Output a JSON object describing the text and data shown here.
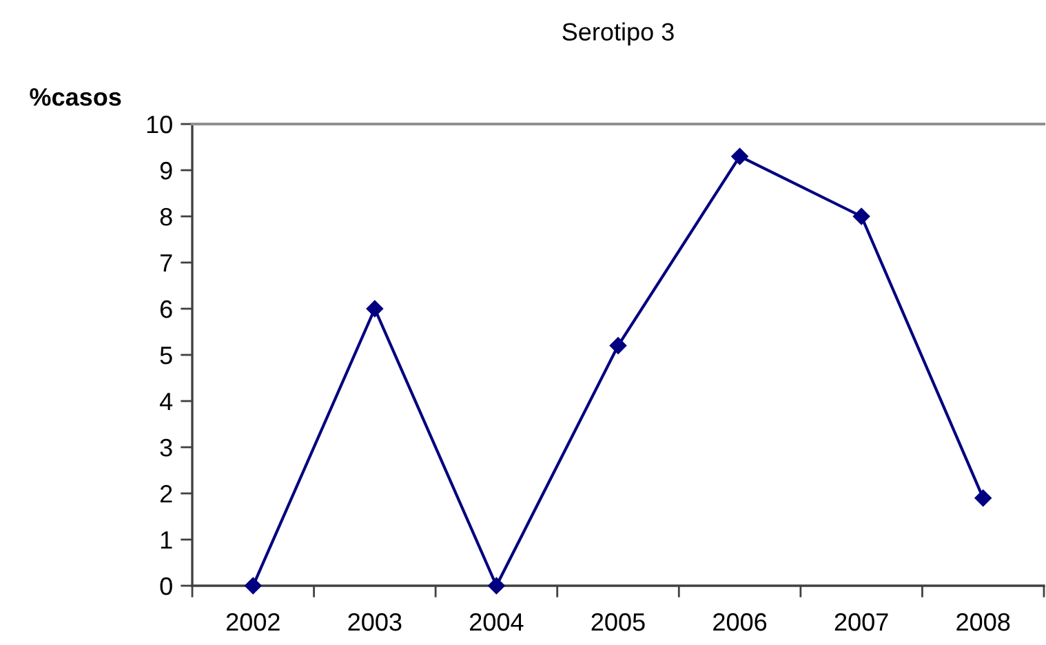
{
  "chart_data": {
    "type": "line",
    "title": "Serotipo 3",
    "ylabel": "%casos",
    "categories": [
      "2002",
      "2003",
      "2004",
      "2005",
      "2006",
      "2007",
      "2008"
    ],
    "series": [
      {
        "color": "#000080",
        "values": [
          0,
          6,
          0,
          5.2,
          9.3,
          8,
          1.9
        ]
      }
    ],
    "ylim": [
      0,
      10
    ],
    "yticks": [
      0,
      1,
      2,
      3,
      4,
      5,
      6,
      7,
      8,
      9,
      10
    ],
    "marker": "diamond",
    "line_style": "solid"
  }
}
